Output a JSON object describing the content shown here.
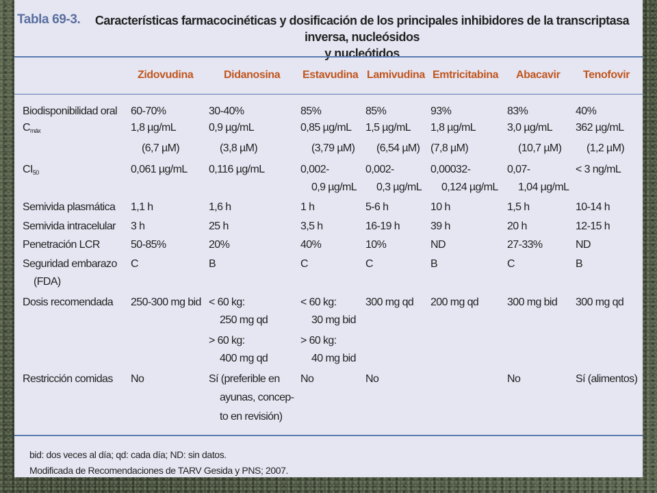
{
  "table": {
    "number": "Tabla 69-3.",
    "title_line1": "Características farmacocinéticas y dosificación de los principales inhibidores de la transcriptasa inversa, nucleósidos",
    "title_line2": "y nucleótidos",
    "columns": [
      "Zidovudina",
      "Didanosina",
      "Estavudina",
      "Lamivudina",
      "Emtricitabina",
      "Abacavir",
      "Tenofovir"
    ],
    "row_labels": {
      "bio": "Biodisponibilidad oral",
      "cmax_main": "C",
      "cmax_sub": "máx",
      "ci_main": "CI",
      "ci_sub": "50",
      "semi_pl": "Semivida plasmática",
      "semi_in": "Semivida intracelular",
      "lcr": "Penetración LCR",
      "seg1": "Seguridad embarazo",
      "seg2": "(FDA)",
      "dosis": "Dosis recomendada",
      "restr": "Restricción comidas"
    },
    "bio": [
      "60-70%",
      "30-40%",
      "85%",
      "85%",
      "93%",
      "83%",
      "40%"
    ],
    "cmax1": [
      "1,8 µg/mL",
      "0,9 µg/mL",
      "0,85 µg/mL",
      "1,5 µg/mL",
      "1,8 µg/mL",
      "3,0 µg/mL",
      "362 µg/mL"
    ],
    "cmax2": [
      "(6,7 µM)",
      "(3,8 µM)",
      "(3,79 µM)",
      "(6,54 µM)",
      "(7,8 µM)",
      "(10,7 µM)",
      "(1,2 µM)"
    ],
    "ci1": [
      "0,061 µg/mL",
      "0,116 µg/mL",
      "0,002-",
      "0,002-",
      "0,00032-",
      "0,07-",
      "< 3 ng/mL"
    ],
    "ci2": [
      "0,9 µg/mL",
      "0,3 µg/mL",
      "0,124 µg/mL",
      "1,04 µg/mL"
    ],
    "semi_pl": [
      "1,1 h",
      "1,6 h",
      "1 h",
      "5-6 h",
      "10 h",
      "1,5 h",
      "10-14 h"
    ],
    "semi_in": [
      "3 h",
      "25 h",
      "3,5 h",
      "16-19 h",
      "39 h",
      "20 h",
      "12-15 h"
    ],
    "lcr": [
      "50-85%",
      "20%",
      "40%",
      "10%",
      "ND",
      "27-33%",
      "ND"
    ],
    "seg": [
      "C",
      "B",
      "C",
      "C",
      "B",
      "C",
      "B"
    ],
    "dosis": {
      "zido": "250-300 mg bid",
      "dida": [
        "< 60 kg:",
        "250 mg qd",
        "> 60 kg:",
        "400 mg qd"
      ],
      "esta": [
        "< 60 kg:",
        "30 mg bid",
        "> 60 kg:",
        "40 mg bid"
      ],
      "lami": "300 mg qd",
      "emtri": "200 mg qd",
      "abac": "300 mg bid",
      "teno": "300 mg qd"
    },
    "restr": {
      "zido": "No",
      "dida": [
        "Sí (preferible en",
        "ayunas, concep-",
        "to en revisión)"
      ],
      "esta": "No",
      "lami": "No",
      "abac": "No",
      "teno": "Sí (alimentos)"
    },
    "footnote1": "bid: dos veces al día; qd: cada día; ND: sin datos.",
    "footnote2": "Modificada de Recomendaciones de TARV Gesida y PNS; 2007."
  }
}
